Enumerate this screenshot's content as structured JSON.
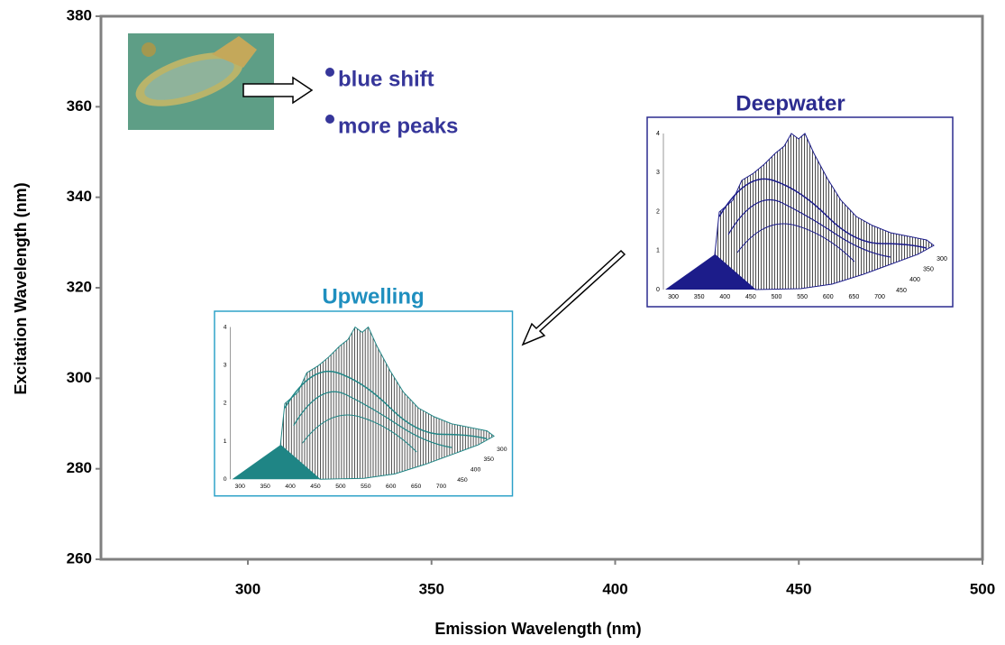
{
  "chart_data": {
    "type": "scatter",
    "x_label": "Emission Wavelength (nm)",
    "y_label": "Excitation Wavelength (nm)",
    "xlim": [
      260,
      500
    ],
    "xticks": [
      300,
      350,
      400,
      450,
      500
    ],
    "ylim": [
      260,
      380
    ],
    "yticks": [
      260,
      280,
      300,
      320,
      340,
      360,
      380
    ],
    "annotations": [
      "blue shift",
      "more peaks"
    ],
    "insets": [
      {
        "title": "Deepwater",
        "color": "#1c1c8a",
        "z_ticks": [
          0,
          1,
          2,
          3,
          4
        ],
        "x_ticks": [
          300,
          350,
          400,
          450,
          500,
          550,
          600,
          650,
          700
        ],
        "y_ticks": [
          300,
          350,
          400,
          450
        ]
      },
      {
        "title": "Upwelling",
        "color": "#1f8585",
        "z_ticks": [
          0,
          1,
          2,
          3,
          4
        ],
        "x_ticks": [
          300,
          350,
          400,
          450,
          500,
          550,
          600,
          650,
          700
        ],
        "y_ticks": [
          300,
          350,
          400,
          450
        ]
      }
    ]
  }
}
